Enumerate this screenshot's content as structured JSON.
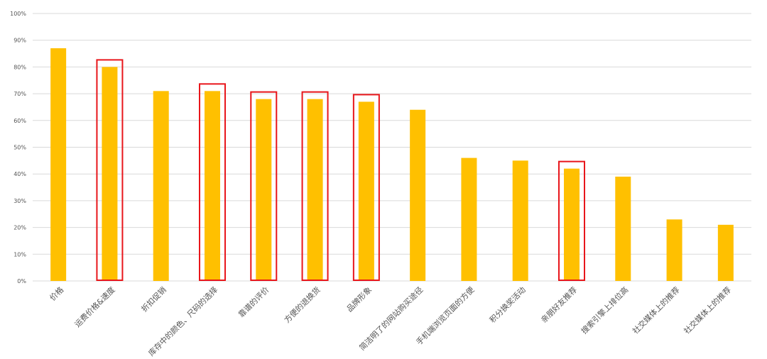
{
  "chart_data": {
    "type": "bar",
    "categories": [
      "价格",
      "运费价格&速度",
      "折扣促销",
      "库存中的颜色、尺码的选择",
      "靠谱的评价",
      "方便的退换货",
      "品牌形象",
      "简洁明了的网站购买途径",
      "手机端浏览页面的方便",
      "积分换奖活动",
      "亲朋好友推荐",
      "搜索引擎上排位高",
      "社交媒体上的推荐",
      "社交媒体上的推荐"
    ],
    "values": [
      87,
      80,
      71,
      71,
      68,
      68,
      67,
      64,
      46,
      45,
      42,
      39,
      23,
      21
    ],
    "highlighted": [
      false,
      true,
      false,
      true,
      true,
      true,
      true,
      false,
      false,
      false,
      true,
      false,
      false,
      false
    ],
    "ylim": [
      0,
      100
    ],
    "yticks": [
      "0%",
      "10%",
      "20%",
      "30%",
      "40%",
      "50%",
      "60%",
      "70%",
      "80%",
      "90%",
      "100%"
    ],
    "grid": true,
    "bar_color": "#FFC000",
    "highlight_color": "#E8161B",
    "grid_color": "#D9D9D9",
    "title": "",
    "xlabel": "",
    "ylabel": ""
  }
}
